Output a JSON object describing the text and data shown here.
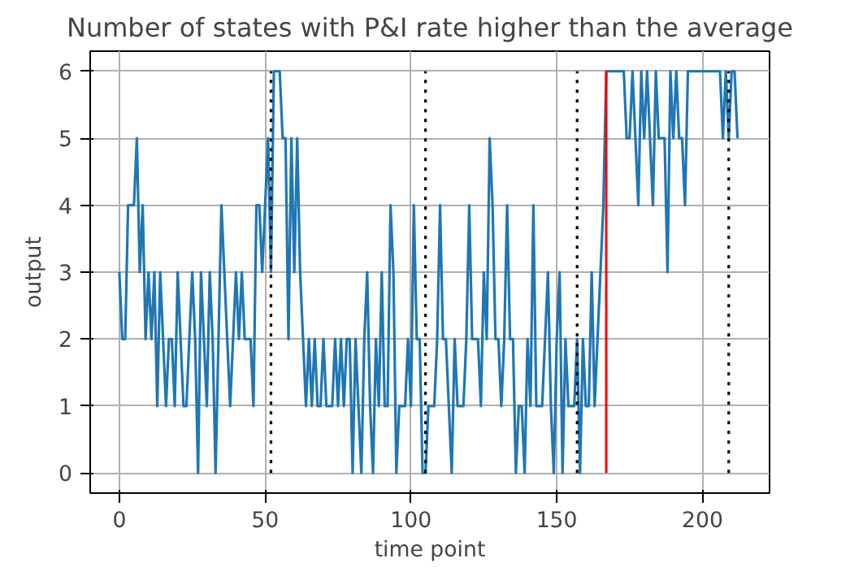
{
  "chart_data": {
    "type": "line",
    "title": "Number of states with P&I rate higher than the average",
    "xlabel": "time point",
    "ylabel": "output",
    "x": [
      0,
      1,
      2,
      3,
      4,
      5,
      6,
      7,
      8,
      9,
      10,
      11,
      12,
      13,
      14,
      15,
      16,
      17,
      18,
      19,
      20,
      21,
      22,
      23,
      24,
      25,
      26,
      27,
      28,
      29,
      30,
      31,
      32,
      33,
      34,
      35,
      36,
      37,
      38,
      39,
      40,
      41,
      42,
      43,
      44,
      45,
      46,
      47,
      48,
      49,
      50,
      51,
      52,
      53,
      54,
      55,
      56,
      57,
      58,
      59,
      60,
      61,
      62,
      63,
      64,
      65,
      66,
      67,
      68,
      69,
      70,
      71,
      72,
      73,
      74,
      75,
      76,
      77,
      78,
      79,
      80,
      81,
      82,
      83,
      84,
      85,
      86,
      87,
      88,
      89,
      90,
      91,
      92,
      93,
      94,
      95,
      96,
      97,
      98,
      99,
      100,
      101,
      102,
      103,
      104,
      105,
      106,
      107,
      108,
      109,
      110,
      111,
      112,
      113,
      114,
      115,
      116,
      117,
      118,
      119,
      120,
      121,
      122,
      123,
      124,
      125,
      126,
      127,
      128,
      129,
      130,
      131,
      132,
      133,
      134,
      135,
      136,
      137,
      138,
      139,
      140,
      141,
      142,
      143,
      144,
      145,
      146,
      147,
      148,
      149,
      150,
      151,
      152,
      153,
      154,
      155,
      156,
      157,
      158,
      159,
      160,
      161,
      162,
      163,
      164,
      165,
      166,
      167,
      168,
      169,
      170,
      171,
      172,
      173,
      174,
      175,
      176,
      177,
      178,
      179,
      180,
      181,
      182,
      183,
      184,
      185,
      186,
      187,
      188,
      189,
      190,
      191,
      192,
      193,
      194,
      195,
      196,
      197,
      198,
      199,
      200,
      201,
      202,
      203,
      204,
      205,
      206,
      207,
      208,
      209,
      210,
      211,
      212
    ],
    "series": [
      {
        "color": "#1f77b4",
        "values": [
          3,
          2,
          2,
          4,
          4,
          4,
          5,
          3,
          4,
          2,
          3,
          2,
          3,
          1,
          3,
          2,
          1,
          2,
          2,
          1,
          3,
          2,
          1,
          1,
          2,
          3,
          2,
          0,
          3,
          2,
          1,
          3,
          2,
          0,
          2,
          4,
          3,
          2,
          1,
          2,
          3,
          2,
          3,
          2,
          2,
          2,
          1,
          4,
          4,
          3,
          4,
          5,
          3,
          6,
          6,
          6,
          5,
          5,
          2,
          5,
          3,
          5,
          3,
          2,
          1,
          2,
          1,
          2,
          1,
          1,
          2,
          1,
          1,
          1,
          2,
          1,
          2,
          1,
          2,
          2,
          0,
          2,
          1,
          0,
          2,
          3,
          1,
          0,
          2,
          1,
          3,
          1,
          1,
          4,
          3,
          0,
          1,
          1,
          1,
          2,
          1,
          4,
          2,
          2,
          0,
          0,
          1,
          1,
          1,
          2,
          4,
          2,
          2,
          1,
          0,
          2,
          1,
          1,
          1,
          2,
          4,
          2,
          2,
          2,
          1,
          3,
          2,
          5,
          4,
          2,
          2,
          1,
          2,
          4,
          2,
          2,
          0,
          1,
          1,
          0,
          2,
          1,
          4,
          1,
          1,
          1,
          2,
          3,
          1,
          0,
          2,
          3,
          0,
          2,
          1,
          1,
          1,
          2,
          0,
          2,
          1,
          1,
          3,
          1,
          2,
          3,
          4,
          6,
          6,
          6,
          6,
          6,
          6,
          6,
          5,
          5,
          6,
          5,
          4,
          6,
          5,
          6,
          5,
          4,
          6,
          5,
          5,
          5,
          3,
          6,
          5,
          6,
          5,
          5,
          4,
          6,
          6,
          6,
          6,
          6,
          6,
          6,
          6,
          6,
          6,
          6,
          6,
          5,
          6,
          5,
          6,
          6,
          5
        ]
      }
    ],
    "xlim": [
      -10,
      223
    ],
    "ylim": [
      -0.3,
      6.3
    ],
    "xticks": [
      0,
      50,
      100,
      150,
      200
    ],
    "yticks": [
      0,
      1,
      2,
      3,
      4,
      5,
      6
    ],
    "grid": true,
    "ref_lines": [
      {
        "axis": "x",
        "value": 52,
        "color": "#000000",
        "line_style": "dotted"
      },
      {
        "axis": "x",
        "value": 105,
        "color": "#000000",
        "line_style": "dotted"
      },
      {
        "axis": "x",
        "value": 157,
        "color": "#000000",
        "line_style": "dotted"
      },
      {
        "axis": "x",
        "value": 209,
        "color": "#000000",
        "line_style": "dotted"
      },
      {
        "axis": "x",
        "value": 167,
        "color": "#ff0000",
        "line_style": "solid"
      }
    ]
  }
}
